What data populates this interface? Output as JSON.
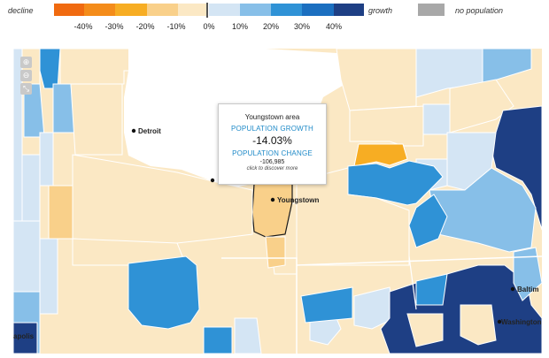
{
  "legend": {
    "decline_label": "decline",
    "growth_label": "growth",
    "nopop_label": "no population",
    "swatches": [
      {
        "name": "legend-swatch-minus-50",
        "color": "#f06a10"
      },
      {
        "name": "legend-swatch-minus-40",
        "color": "#f48c1a"
      },
      {
        "name": "legend-swatch-minus-30",
        "color": "#f7ad23"
      },
      {
        "name": "legend-swatch-minus-20",
        "color": "#f9d08a"
      },
      {
        "name": "legend-swatch-minus-10",
        "color": "#fbe8c4"
      },
      {
        "name": "legend-swatch-plus-10",
        "color": "#d4e5f4"
      },
      {
        "name": "legend-swatch-plus-20",
        "color": "#87bfe8"
      },
      {
        "name": "legend-swatch-plus-30",
        "color": "#2f92d6"
      },
      {
        "name": "legend-swatch-plus-40",
        "color": "#1b6fc0"
      },
      {
        "name": "legend-swatch-plus-50",
        "color": "#1e3f84"
      }
    ],
    "nopop_color": "#a8a8a8",
    "ticks": [
      "-40%",
      "-30%",
      "-20%",
      "-10%",
      "0%",
      "10%",
      "20%",
      "30%",
      "40%"
    ]
  },
  "colors": {
    "lake": "#ffffff",
    "base": "#fbe8c4",
    "border": "#ffffff",
    "highlight_border": "#1a1a1a"
  },
  "zoom": {
    "icons": [
      "zoom-in-icon",
      "zoom-out-icon",
      "fullscreen-icon"
    ],
    "glyphs": [
      "⊕",
      "⊖",
      "⤡"
    ]
  },
  "cities": {
    "detroit": "Detroit",
    "youngstown": "Youngstown",
    "baltimore": "Baltim",
    "washington": "Washington",
    "indianapolis": "apolis"
  },
  "tooltip": {
    "area": "Youngstown area",
    "growth_heading": "POPULATION GROWTH",
    "growth_value": "-14.03%",
    "change_heading": "POPULATION CHANGE",
    "change_value": "-106,985",
    "click_text": "click to discover more"
  }
}
